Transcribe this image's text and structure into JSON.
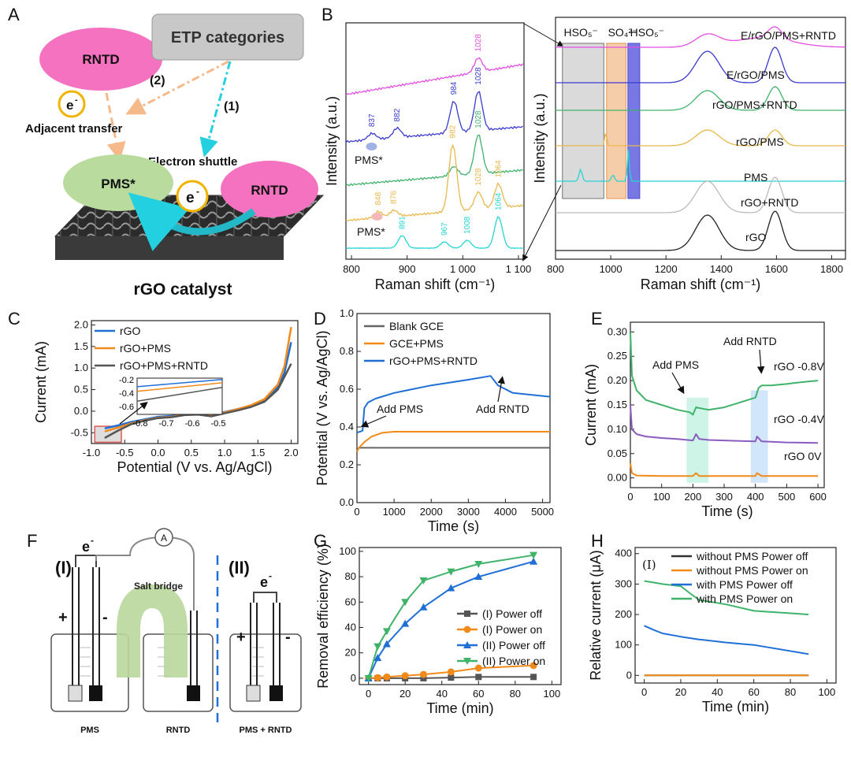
{
  "panel_labels": [
    "A",
    "B",
    "C",
    "D",
    "E",
    "F",
    "G",
    "H"
  ],
  "colors": {
    "blue": "#1f6fd6",
    "orange": "#f28a1a",
    "gray": "#5a5a5a",
    "green": "#3fb36a",
    "purple": "#8a5cc0",
    "magenta": "#e34ee3",
    "cyan": "#26d4d4",
    "gold": "#e8b84a",
    "navy": "#3a3ad0"
  },
  "schematic_a": {
    "rntd_top": "RNTD",
    "etp": "ETP categories",
    "path2": "(2)",
    "path1": "(1)",
    "electron": "e",
    "electron_sup": "-",
    "adjacent": "Adjacent transfer",
    "shuttle": "Electron shuttle",
    "pms": "PMS*",
    "rntd_right": "RNTD",
    "caption": "rGO catalyst"
  },
  "chart_data": [
    {
      "id": "B-left",
      "type": "line",
      "title": "",
      "xlabel": "Raman shift (cm⁻¹)",
      "ylabel": "Intensity (a.u.)",
      "xlim": [
        790,
        1110
      ],
      "x_ticks": [
        "800",
        "900",
        "1 000",
        "1 100"
      ],
      "series": [
        {
          "name": "E/rGO/PMS+RNTD",
          "color": "#e34ee3",
          "peaks": [
            "1028"
          ]
        },
        {
          "name": "E/rGO/PMS",
          "color": "#3a3ad0",
          "peaks": [
            "837",
            "882",
            "984",
            "1028"
          ]
        },
        {
          "name": "rGO/PMS+RNTD",
          "color": "#3fb36a",
          "peaks": [
            "1028"
          ]
        },
        {
          "name": "rGO/PMS",
          "color": "#e8b84a",
          "peaks": [
            "848",
            "876",
            "982",
            "1028",
            "1064"
          ]
        },
        {
          "name": "PMS",
          "color": "#26d4d4",
          "peaks": [
            "891",
            "967",
            "1008",
            "1064"
          ]
        }
      ],
      "annotations": [
        "PMS*",
        "PMS*"
      ]
    },
    {
      "id": "B-right",
      "type": "line",
      "xlabel": "Raman shift (cm⁻¹)",
      "ylabel": "Intensity (a.u.)",
      "xlim": [
        800,
        1850
      ],
      "x_ticks": [
        "800",
        "1000",
        "1200",
        "1400",
        "1600",
        "1800"
      ],
      "bands": [
        "HSO₅⁻",
        "SO₄²⁻",
        "HSO₅⁻"
      ],
      "series": [
        {
          "name": "E/rGO/PMS+RNTD",
          "color": "#e34ee3"
        },
        {
          "name": "E/rGO/PMS",
          "color": "#3a3ad0"
        },
        {
          "name": "rGO/PMS+RNTD",
          "color": "#3fb36a"
        },
        {
          "name": "rGO/PMS",
          "color": "#e8b84a"
        },
        {
          "name": "PMS",
          "color": "#26d4d4"
        },
        {
          "name": "rGO+RNTD",
          "color": "#bbbbbb"
        },
        {
          "name": "rGO",
          "color": "#222222"
        }
      ]
    },
    {
      "id": "C",
      "type": "line",
      "xlabel": "Potential (V vs. Ag/AgCl)",
      "ylabel": "Current (mA)",
      "xlim": [
        -1.0,
        2.1
      ],
      "ylim": [
        -0.75,
        2.1
      ],
      "x_ticks": [
        -1.0,
        -0.5,
        0.0,
        0.5,
        1.0,
        1.5,
        2.0
      ],
      "y_ticks": [
        -0.5,
        0.0,
        0.5,
        1.0,
        1.5,
        2.0
      ],
      "x_tick_labels": [
        "-1.0",
        "-0.5",
        "0.0",
        "0.5",
        "1.0",
        "1.5",
        "2.0"
      ],
      "y_tick_labels": [
        "-0.5",
        "0.0",
        "0.5",
        "1.0",
        "1.5",
        "2.0"
      ],
      "inset": {
        "x_ticks": [
          "-0.8",
          "-0.7",
          "-0.6",
          "-0.5"
        ],
        "y_ticks": [
          "-0.2",
          "-0.4",
          "-0.6"
        ]
      },
      "series": [
        {
          "name": "rGO",
          "color": "#1f6fd6",
          "x": [
            -0.8,
            -0.6,
            -0.4,
            -0.2,
            0.0,
            0.2,
            0.4,
            0.6,
            0.8,
            1.0,
            1.2,
            1.4,
            1.6,
            1.8,
            1.9,
            2.0
          ],
          "y": [
            -0.4,
            -0.33,
            -0.25,
            -0.19,
            -0.13,
            -0.11,
            -0.06,
            -0.05,
            -0.08,
            -0.02,
            0.05,
            0.13,
            0.25,
            0.55,
            0.9,
            1.6
          ]
        },
        {
          "name": "rGO+PMS",
          "color": "#f28a1a",
          "x": [
            -0.8,
            -0.6,
            -0.4,
            -0.2,
            0.0,
            0.2,
            0.4,
            0.6,
            0.8,
            1.0,
            1.2,
            1.4,
            1.6,
            1.8,
            1.9,
            2.0
          ],
          "y": [
            -0.47,
            -0.38,
            -0.28,
            -0.21,
            -0.15,
            -0.13,
            -0.07,
            -0.06,
            -0.1,
            -0.03,
            0.05,
            0.14,
            0.28,
            0.62,
            1.05,
            1.95
          ]
        },
        {
          "name": "rGO+PMS+RNTD",
          "color": "#555555",
          "x": [
            -0.8,
            -0.6,
            -0.4,
            -0.2,
            0.0,
            0.2,
            0.4,
            0.6,
            0.8,
            1.0,
            1.2,
            1.4,
            1.6,
            1.8,
            1.9,
            2.0
          ],
          "y": [
            -0.62,
            -0.45,
            -0.3,
            -0.22,
            -0.16,
            -0.14,
            -0.09,
            -0.08,
            -0.12,
            -0.05,
            0.02,
            0.1,
            0.22,
            0.5,
            0.8,
            1.1
          ]
        }
      ]
    },
    {
      "id": "D",
      "type": "line",
      "xlabel": "Time (s)",
      "ylabel": "Potential (V vs. Ag/AgCl)",
      "xlim": [
        0,
        5200
      ],
      "ylim": [
        0.0,
        1.0
      ],
      "x_ticks": [
        0,
        1000,
        2000,
        3000,
        4000,
        5000
      ],
      "y_ticks": [
        0.0,
        0.2,
        0.4,
        0.6,
        0.8,
        1.0
      ],
      "x_tick_labels": [
        "0",
        "1000",
        "2000",
        "3000",
        "4000",
        "5000"
      ],
      "y_tick_labels": [
        "0.0",
        "0.2",
        "0.4",
        "0.6",
        "0.8",
        "1.0"
      ],
      "annotations": [
        "Add PMS",
        "Add RNTD"
      ],
      "series": [
        {
          "name": "Blank GCE",
          "color": "#666666",
          "x": [
            0,
            50,
            200,
            1000,
            3000,
            5200
          ],
          "y": [
            0.27,
            0.29,
            0.29,
            0.29,
            0.29,
            0.29
          ]
        },
        {
          "name": "GCE+PMS",
          "color": "#f28a1a",
          "x": [
            0,
            50,
            200,
            400,
            700,
            1000,
            3000,
            5200
          ],
          "y": [
            0.27,
            0.29,
            0.32,
            0.35,
            0.37,
            0.375,
            0.375,
            0.375
          ]
        },
        {
          "name": "rGO+PMS+RNTD",
          "color": "#1f6fd6",
          "x": [
            0,
            150,
            200,
            300,
            500,
            1000,
            2000,
            3000,
            3600,
            3800,
            4200,
            5200
          ],
          "y": [
            0.37,
            0.38,
            0.5,
            0.53,
            0.55,
            0.58,
            0.62,
            0.65,
            0.67,
            0.62,
            0.58,
            0.56
          ]
        }
      ]
    },
    {
      "id": "E",
      "type": "line",
      "xlabel": "Time (s)",
      "ylabel": "Current (mA)",
      "xlim": [
        0,
        620
      ],
      "ylim": [
        -0.02,
        0.32
      ],
      "x_ticks": [
        0,
        100,
        200,
        300,
        400,
        500,
        600
      ],
      "y_ticks": [
        0.0,
        0.05,
        0.1,
        0.15,
        0.2,
        0.25,
        0.3
      ],
      "x_tick_labels": [
        "0",
        "100",
        "200",
        "300",
        "400",
        "500",
        "600"
      ],
      "y_tick_labels": [
        "0.00",
        "0.05",
        "0.10",
        "0.15",
        "0.20",
        "0.25",
        "0.30"
      ],
      "annotations": [
        "Add PMS",
        "Add RNTD"
      ],
      "series": [
        {
          "name": "rGO -0.8V",
          "color": "#3fb36a",
          "x": [
            0,
            5,
            20,
            50,
            100,
            150,
            190,
            200,
            210,
            250,
            300,
            350,
            400,
            410,
            420,
            450,
            500,
            550,
            600
          ],
          "y": [
            0.3,
            0.21,
            0.18,
            0.16,
            0.15,
            0.14,
            0.135,
            0.13,
            0.145,
            0.14,
            0.145,
            0.155,
            0.165,
            0.185,
            0.19,
            0.19,
            0.193,
            0.197,
            0.2
          ]
        },
        {
          "name": "rGO -0.4V",
          "color": "#8a5cc0",
          "x": [
            0,
            5,
            20,
            50,
            100,
            150,
            200,
            210,
            220,
            250,
            300,
            350,
            400,
            405,
            420,
            500,
            600
          ],
          "y": [
            0.15,
            0.1,
            0.09,
            0.085,
            0.082,
            0.08,
            0.077,
            0.09,
            0.08,
            0.078,
            0.077,
            0.076,
            0.075,
            0.085,
            0.075,
            0.073,
            0.072
          ]
        },
        {
          "name": "rGO 0V",
          "color": "#f28a1a",
          "x": [
            0,
            5,
            20,
            100,
            200,
            210,
            220,
            400,
            405,
            420,
            600
          ],
          "y": [
            0.03,
            0.01,
            0.005,
            0.004,
            0.004,
            0.01,
            0.004,
            0.004,
            0.01,
            0.004,
            0.004
          ]
        }
      ]
    },
    {
      "id": "G",
      "type": "line",
      "xlabel": "Time (min)",
      "ylabel": "Removal efficiency (%)",
      "xlim": [
        -5,
        105
      ],
      "ylim": [
        -5,
        103
      ],
      "x_ticks": [
        0,
        20,
        40,
        60,
        80,
        100
      ],
      "y_ticks": [
        0,
        20,
        40,
        60,
        80,
        100
      ],
      "x_tick_labels": [
        "0",
        "20",
        "40",
        "60",
        "80",
        "100"
      ],
      "y_tick_labels": [
        "0",
        "20",
        "40",
        "60",
        "80",
        "100"
      ],
      "series": [
        {
          "name": "(I) Power off",
          "color": "#555555",
          "marker": "square",
          "x": [
            0,
            5,
            10,
            20,
            30,
            45,
            60,
            90
          ],
          "y": [
            0,
            0,
            0,
            0,
            0,
            0.5,
            1,
            1
          ]
        },
        {
          "name": "(I) Power on",
          "color": "#f28a1a",
          "marker": "circle",
          "x": [
            0,
            5,
            10,
            20,
            30,
            45,
            60,
            90
          ],
          "y": [
            0,
            0.5,
            1,
            2,
            3,
            5,
            8,
            10
          ]
        },
        {
          "name": "(II) Power off",
          "color": "#1f6fd6",
          "marker": "triangle-up",
          "x": [
            0,
            5,
            10,
            20,
            30,
            45,
            60,
            90
          ],
          "y": [
            0,
            16,
            27,
            43,
            56,
            71,
            80,
            92
          ]
        },
        {
          "name": "(II) Power on",
          "color": "#3fb36a",
          "marker": "triangle-down",
          "x": [
            0,
            5,
            10,
            20,
            30,
            45,
            60,
            90
          ],
          "y": [
            0,
            25,
            37,
            60,
            77,
            84,
            90,
            97
          ]
        }
      ]
    },
    {
      "id": "H",
      "type": "line",
      "xlabel": "Time (min)",
      "ylabel": "Relative current (μA)",
      "xlim": [
        -5,
        105
      ],
      "ylim": [
        -25,
        420
      ],
      "x_ticks": [
        0,
        20,
        40,
        60,
        80,
        100
      ],
      "y_ticks": [
        0,
        100,
        200,
        300,
        400
      ],
      "x_tick_labels": [
        "0",
        "20",
        "40",
        "60",
        "80",
        "100"
      ],
      "y_tick_labels": [
        "0",
        "100",
        "200",
        "300",
        "400"
      ],
      "inset_label": "(I)",
      "series": [
        {
          "name": "without PMS Power off",
          "color": "#333333",
          "x": [
            0,
            90
          ],
          "y": [
            0,
            0
          ]
        },
        {
          "name": "without PMS Power on",
          "color": "#f28a1a",
          "x": [
            0,
            90
          ],
          "y": [
            0,
            0
          ]
        },
        {
          "name": "with PMS Power off",
          "color": "#1f6fd6",
          "x": [
            0,
            5,
            10,
            20,
            30,
            45,
            60,
            90
          ],
          "y": [
            163,
            150,
            138,
            127,
            118,
            108,
            100,
            70
          ]
        },
        {
          "name": "with PMS Power on",
          "color": "#3fb36a",
          "x": [
            0,
            5,
            10,
            20,
            25,
            30,
            45,
            60,
            90
          ],
          "y": [
            310,
            305,
            300,
            293,
            270,
            248,
            233,
            212,
            200
          ]
        }
      ]
    }
  ],
  "schematic_f": {
    "part1": "(I)",
    "part2": "(II)",
    "electron": "e",
    "electron_sup": "-",
    "ammeter": "A",
    "salt_bridge": "Salt bridge",
    "plus": "+",
    "minus": "-",
    "beaker_pms": "PMS",
    "beaker_rntd": "RNTD",
    "beaker_both": "PMS + RNTD"
  }
}
